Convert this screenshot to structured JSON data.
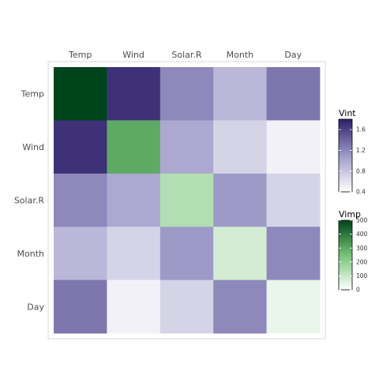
{
  "chart_data": {
    "type": "heatmap",
    "variables": [
      "Temp",
      "Wind",
      "Solar.R",
      "Month",
      "Day"
    ],
    "diagonal_measure": "Vimp",
    "offdiagonal_measure": "Vint",
    "vimp": [
      500,
      300,
      140,
      80,
      40
    ],
    "vint": [
      [
        null,
        1.7,
        1.2,
        0.9,
        1.3
      ],
      [
        1.7,
        null,
        1.0,
        0.7,
        0.5
      ],
      [
        1.2,
        1.0,
        null,
        1.1,
        0.7
      ],
      [
        0.9,
        0.7,
        1.1,
        null,
        1.2
      ],
      [
        1.3,
        0.5,
        0.7,
        1.2,
        null
      ]
    ],
    "legends": [
      {
        "title": "Vint",
        "range": [
          0.4,
          1.8
        ],
        "ticks": [
          "0.4",
          "0.8",
          "1.2",
          "1.6"
        ],
        "tick_values": [
          0.4,
          0.8,
          1.2,
          1.6
        ],
        "colors": [
          "#ffffff",
          "#9e9ac8",
          "#2e1f6b"
        ]
      },
      {
        "title": "Vimp",
        "range": [
          0,
          500
        ],
        "ticks": [
          "0",
          "100",
          "200",
          "300",
          "400",
          "500"
        ],
        "tick_values": [
          0,
          100,
          200,
          300,
          400,
          500
        ],
        "colors": [
          "#ffffff",
          "#74c476",
          "#00441b"
        ]
      }
    ]
  }
}
